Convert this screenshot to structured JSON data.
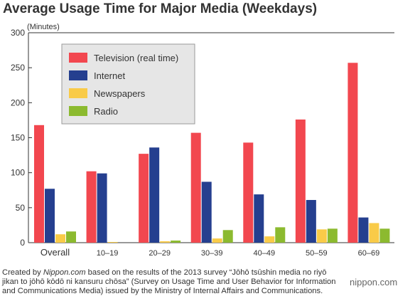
{
  "chart_data": {
    "type": "bar",
    "title": "Average Usage Time for Major Media (Weekdays)",
    "ylabel": "(Minutes)",
    "xlabel": "",
    "ylim": [
      0,
      300
    ],
    "yticks": [
      0,
      50,
      100,
      150,
      200,
      250,
      300
    ],
    "grid": false,
    "legend_position": "top-left",
    "categories": [
      "Overall",
      "10–19",
      "20–29",
      "30–39",
      "40–49",
      "50–59",
      "60–69"
    ],
    "series": [
      {
        "name": "Television (real time)",
        "color": "#f2474f",
        "values": [
          168,
          102,
          127,
          157,
          143,
          176,
          257
        ]
      },
      {
        "name": "Internet",
        "color": "#253f8f",
        "values": [
          77,
          99,
          136,
          87,
          69,
          61,
          36
        ]
      },
      {
        "name": "Newspapers",
        "color": "#f9cb48",
        "values": [
          12,
          1,
          2,
          6,
          9,
          19,
          28
        ]
      },
      {
        "name": "Radio",
        "color": "#8cba2f",
        "values": [
          16,
          0,
          3,
          18,
          22,
          20,
          20
        ]
      }
    ]
  },
  "footer": {
    "prefix": "Created by ",
    "source_name": "Nippon.com",
    "text": " based on the results of the 2013 survey “Jōhō tsūshin media no riyō jikan to jōhō kōdō ni kansuru chōsa” (Survey on Usage Time and User Behavior for Information and Communications Media) issued by the Ministry of Internal Affairs and Communications."
  },
  "brand": {
    "text": "nippon.com",
    "color": "#666666"
  }
}
